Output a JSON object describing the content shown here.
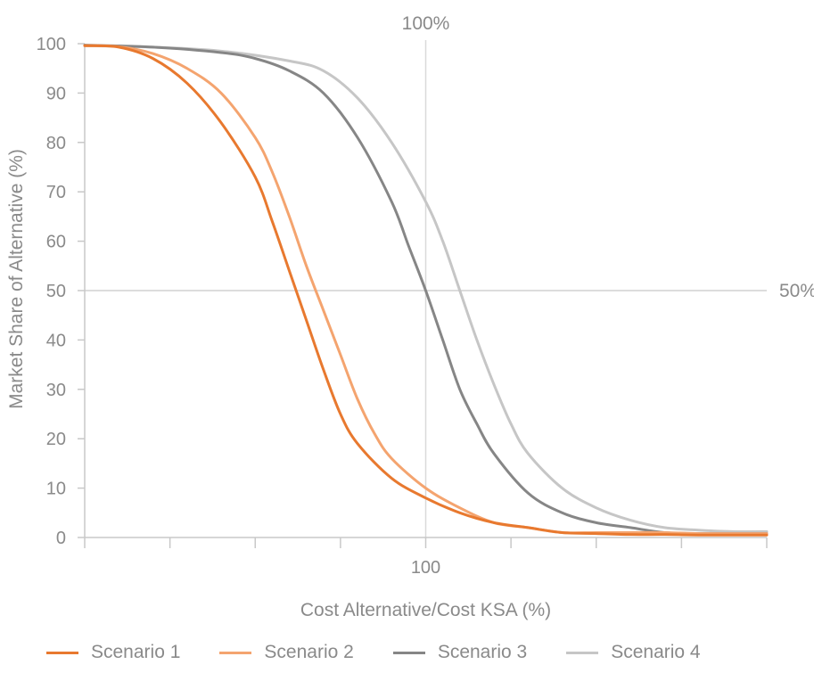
{
  "chart_data": {
    "type": "line",
    "title": "",
    "xlabel": "Cost Alternative/Cost KSA (%)",
    "ylabel": "Market Share of Alternative (%)",
    "ylim": [
      0,
      100
    ],
    "yticks": [
      0,
      10,
      20,
      30,
      40,
      50,
      60,
      70,
      80,
      90,
      100
    ],
    "xlim": [
      0,
      200
    ],
    "xtick_count": 8,
    "xtick_labels": [
      {
        "x": 100,
        "label": "100"
      }
    ],
    "grid": false,
    "reference_lines": [
      {
        "axis": "x",
        "value": 100,
        "label": "100%"
      },
      {
        "axis": "y",
        "value": 50,
        "label": "50%"
      }
    ],
    "legend_position": "bottom",
    "series": [
      {
        "name": "Scenario 1",
        "color": "#e8792f",
        "points": [
          [
            0,
            99.6
          ],
          [
            10,
            99.3
          ],
          [
            20,
            97
          ],
          [
            30,
            92
          ],
          [
            40,
            84
          ],
          [
            50,
            73
          ],
          [
            55,
            64
          ],
          [
            60,
            54
          ],
          [
            65,
            44
          ],
          [
            70,
            34
          ],
          [
            75,
            25
          ],
          [
            80,
            19
          ],
          [
            90,
            12
          ],
          [
            100,
            8
          ],
          [
            110,
            5
          ],
          [
            120,
            3
          ],
          [
            130,
            2
          ],
          [
            140,
            1
          ],
          [
            150,
            0.8
          ],
          [
            160,
            0.6
          ],
          [
            170,
            0.6
          ],
          [
            180,
            0.5
          ],
          [
            190,
            0.5
          ],
          [
            200,
            0.5
          ]
        ]
      },
      {
        "name": "Scenario 2",
        "color": "#f4a46f",
        "points": [
          [
            0,
            99.6
          ],
          [
            10,
            99.4
          ],
          [
            20,
            98
          ],
          [
            30,
            95
          ],
          [
            40,
            90
          ],
          [
            50,
            81
          ],
          [
            55,
            74
          ],
          [
            60,
            65
          ],
          [
            65,
            55
          ],
          [
            70,
            46
          ],
          [
            75,
            37
          ],
          [
            80,
            28
          ],
          [
            85,
            21
          ],
          [
            90,
            16
          ],
          [
            100,
            10
          ],
          [
            110,
            6
          ],
          [
            120,
            3
          ],
          [
            130,
            2
          ],
          [
            140,
            1
          ],
          [
            150,
            1
          ],
          [
            160,
            1
          ],
          [
            170,
            1
          ],
          [
            180,
            0.8
          ],
          [
            190,
            0.8
          ],
          [
            200,
            0.8
          ]
        ]
      },
      {
        "name": "Scenario 3",
        "color": "#868686",
        "points": [
          [
            0,
            99.7
          ],
          [
            20,
            99.3
          ],
          [
            40,
            98.2
          ],
          [
            50,
            97
          ],
          [
            60,
            94.5
          ],
          [
            70,
            90
          ],
          [
            80,
            81
          ],
          [
            90,
            68
          ],
          [
            95,
            59
          ],
          [
            100,
            50
          ],
          [
            105,
            40
          ],
          [
            110,
            30
          ],
          [
            115,
            23
          ],
          [
            120,
            17
          ],
          [
            130,
            9
          ],
          [
            140,
            5
          ],
          [
            150,
            3
          ],
          [
            160,
            2
          ],
          [
            170,
            1
          ],
          [
            180,
            0.8
          ],
          [
            190,
            0.8
          ],
          [
            200,
            0.8
          ]
        ]
      },
      {
        "name": "Scenario 4",
        "color": "#c6c6c6",
        "points": [
          [
            0,
            99.6
          ],
          [
            20,
            99.3
          ],
          [
            40,
            98.5
          ],
          [
            60,
            96.5
          ],
          [
            70,
            94.5
          ],
          [
            80,
            89
          ],
          [
            90,
            80
          ],
          [
            100,
            68
          ],
          [
            105,
            60
          ],
          [
            110,
            50
          ],
          [
            115,
            40
          ],
          [
            120,
            31
          ],
          [
            125,
            23
          ],
          [
            130,
            17
          ],
          [
            140,
            10
          ],
          [
            150,
            6
          ],
          [
            160,
            3.5
          ],
          [
            170,
            2
          ],
          [
            180,
            1.5
          ],
          [
            190,
            1.2
          ],
          [
            200,
            1.2
          ]
        ]
      }
    ]
  }
}
